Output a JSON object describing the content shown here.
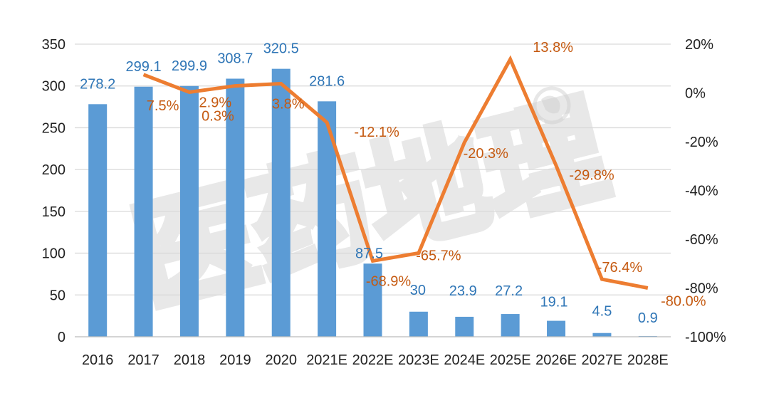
{
  "watermark": {
    "text": "医药地理"
  },
  "colors": {
    "bar": "#5b9bd5",
    "line": "#ed7d31",
    "bar_label": "#2e75b6",
    "line_label": "#c55a11",
    "grid": "#d9d9d9",
    "watermark": "#d8d8d8"
  },
  "chart_data": {
    "type": "bar",
    "categories": [
      "2016",
      "2017",
      "2018",
      "2019",
      "2020",
      "2021E",
      "2022E",
      "2023E",
      "2024E",
      "2025E",
      "2026E",
      "2027E",
      "2028E"
    ],
    "series": [
      {
        "type": "bar",
        "axis": "left",
        "values": [
          278.2,
          299.1,
          299.9,
          308.7,
          320.5,
          281.6,
          87.5,
          30,
          23.9,
          27.2,
          19.1,
          4.5,
          0.9
        ],
        "labels": [
          "278.2",
          "299.1",
          "299.9",
          "308.7",
          "320.5",
          "281.6",
          "87.5",
          "30",
          "23.9",
          "27.2",
          "19.1",
          "4.5",
          "0.9"
        ]
      },
      {
        "type": "line",
        "axis": "right",
        "values": [
          null,
          7.5,
          0.3,
          2.9,
          3.8,
          -12.1,
          -68.9,
          -65.7,
          -20.3,
          13.8,
          -29.8,
          -76.4,
          -80.0
        ],
        "labels": [
          "",
          "7.5%",
          "0.3%",
          "2.9%",
          "3.8%",
          "-12.1%",
          "-68.9%",
          "-65.7%",
          "-20.3%",
          "13.8%",
          "-29.8%",
          "-76.4%",
          "-80.0%"
        ]
      }
    ],
    "left_axis": {
      "ylim": [
        0,
        350
      ],
      "ticks": [
        "0",
        "50",
        "100",
        "150",
        "200",
        "250",
        "300",
        "350"
      ]
    },
    "right_axis": {
      "ylim": [
        -100,
        20
      ],
      "ticks": [
        "-100%",
        "-80%",
        "-60%",
        "-40%",
        "-20%",
        "0%",
        "20%"
      ]
    },
    "grid": true,
    "legend": "none",
    "title": "",
    "xlabel": "",
    "ylabel": ""
  }
}
